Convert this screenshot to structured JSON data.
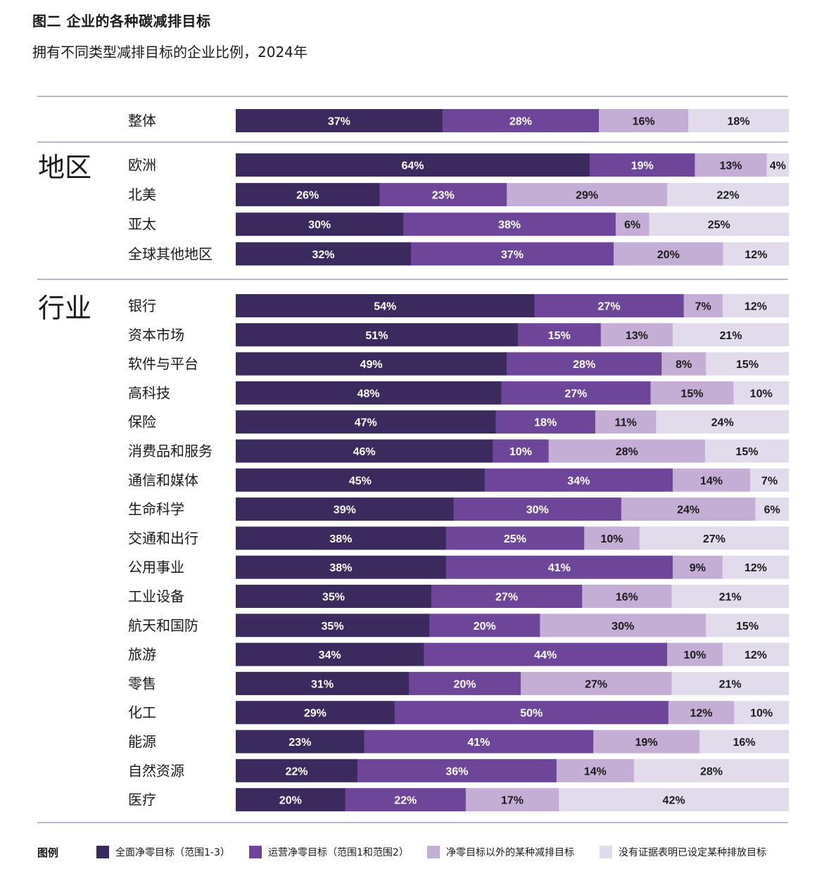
{
  "title": "图二  企业的各种碳减排目标",
  "subtitle": "拥有不同类型减排目标的企业比例，2024年",
  "legend_title": "图例",
  "colors": {
    "full_net_zero": "#3b2a5e",
    "operational_net_zero": "#6e4699",
    "other_target": "#c5aed5",
    "no_evidence": "#e2dbec",
    "rule": "#9a86b8"
  },
  "chart_data": {
    "type": "bar",
    "orientation": "horizontal",
    "stacked": true,
    "unit": "%",
    "series": [
      {
        "name": "全面净零目标（范围1-3）",
        "key": "full_net_zero"
      },
      {
        "name": "运营净零目标（范围1和范围2）",
        "key": "operational_net_zero"
      },
      {
        "name": "净零目标以外的某种减排目标",
        "key": "other_target"
      },
      {
        "name": "没有证据表明已设定某种排放目标",
        "key": "no_evidence"
      }
    ],
    "groups": [
      {
        "label": "",
        "rows": [
          {
            "label": "整体",
            "values": [
              37,
              28,
              16,
              18
            ]
          }
        ]
      },
      {
        "label": "地区",
        "rows": [
          {
            "label": "欧洲",
            "values": [
              64,
              19,
              13,
              4
            ]
          },
          {
            "label": "北美",
            "values": [
              26,
              23,
              29,
              22
            ]
          },
          {
            "label": "亚太",
            "values": [
              30,
              38,
              6,
              25
            ]
          },
          {
            "label": "全球其他地区",
            "values": [
              32,
              37,
              20,
              12
            ]
          }
        ]
      },
      {
        "label": "行业",
        "rows": [
          {
            "label": "银行",
            "values": [
              54,
              27,
              7,
              12
            ]
          },
          {
            "label": "资本市场",
            "values": [
              51,
              15,
              13,
              21
            ]
          },
          {
            "label": "软件与平台",
            "values": [
              49,
              28,
              8,
              15
            ]
          },
          {
            "label": "高科技",
            "values": [
              48,
              27,
              15,
              10
            ]
          },
          {
            "label": "保险",
            "values": [
              47,
              18,
              11,
              24
            ]
          },
          {
            "label": "消费品和服务",
            "values": [
              46,
              10,
              28,
              15
            ]
          },
          {
            "label": "通信和媒体",
            "values": [
              45,
              34,
              14,
              7
            ]
          },
          {
            "label": "生命科学",
            "values": [
              39,
              30,
              24,
              6
            ]
          },
          {
            "label": "交通和出行",
            "values": [
              38,
              25,
              10,
              27
            ]
          },
          {
            "label": "公用事业",
            "values": [
              38,
              41,
              9,
              12
            ]
          },
          {
            "label": "工业设备",
            "values": [
              35,
              27,
              16,
              21
            ]
          },
          {
            "label": "航天和国防",
            "values": [
              35,
              20,
              30,
              15
            ]
          },
          {
            "label": "旅游",
            "values": [
              34,
              44,
              10,
              12
            ]
          },
          {
            "label": "零售",
            "values": [
              31,
              20,
              27,
              21
            ]
          },
          {
            "label": "化工",
            "values": [
              29,
              50,
              12,
              10
            ]
          },
          {
            "label": "能源",
            "values": [
              23,
              41,
              19,
              16
            ]
          },
          {
            "label": "自然资源",
            "values": [
              22,
              36,
              14,
              28
            ]
          },
          {
            "label": "医疗",
            "values": [
              20,
              22,
              17,
              42
            ]
          }
        ]
      }
    ]
  }
}
